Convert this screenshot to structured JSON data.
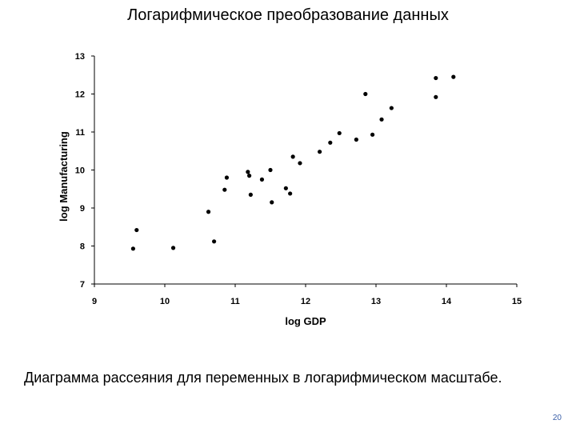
{
  "slide": {
    "title": "Логарифмическое преобразование данных",
    "caption": "Диаграмма рассеяния для переменных в логарифмическом масштабе.",
    "page_number": "20",
    "page_number_color": "#3a5fa8"
  },
  "chart_data": {
    "type": "scatter",
    "title": "",
    "xlabel": "log GDP",
    "ylabel": "log Manufacturing",
    "xlim": [
      9,
      15
    ],
    "ylim": [
      7,
      13
    ],
    "xticks": [
      "9",
      "10",
      "11",
      "12",
      "13",
      "14",
      "15"
    ],
    "yticks": [
      "7",
      "8",
      "9",
      "10",
      "11",
      "12",
      "13"
    ],
    "grid": false,
    "legend": "none",
    "marker_color": "#000000",
    "series": [
      {
        "points": [
          [
            9.55,
            7.93
          ],
          [
            9.6,
            8.42
          ],
          [
            10.12,
            7.95
          ],
          [
            10.62,
            8.9
          ],
          [
            10.7,
            8.12
          ],
          [
            10.85,
            9.48
          ],
          [
            10.88,
            9.8
          ],
          [
            11.18,
            9.95
          ],
          [
            11.2,
            9.85
          ],
          [
            11.22,
            9.35
          ],
          [
            11.38,
            9.75
          ],
          [
            11.5,
            10.0
          ],
          [
            11.52,
            9.15
          ],
          [
            11.72,
            9.52
          ],
          [
            11.78,
            9.38
          ],
          [
            11.82,
            10.35
          ],
          [
            11.92,
            10.18
          ],
          [
            12.2,
            10.48
          ],
          [
            12.35,
            10.72
          ],
          [
            12.48,
            10.97
          ],
          [
            12.72,
            10.8
          ],
          [
            12.85,
            12.0
          ],
          [
            12.95,
            10.93
          ],
          [
            13.08,
            11.33
          ],
          [
            13.22,
            11.63
          ],
          [
            13.85,
            12.42
          ],
          [
            13.85,
            11.92
          ],
          [
            14.1,
            12.45
          ]
        ]
      }
    ]
  }
}
